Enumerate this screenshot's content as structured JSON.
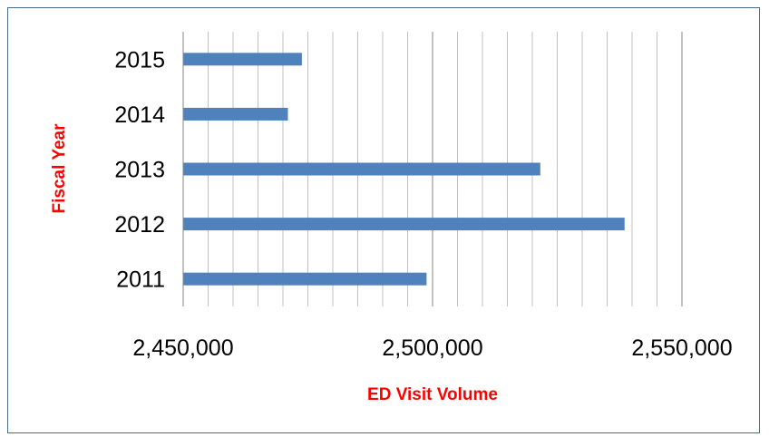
{
  "chart_data": {
    "type": "bar",
    "orientation": "horizontal",
    "categories": [
      "2011",
      "2012",
      "2013",
      "2014",
      "2015"
    ],
    "values": [
      2498800,
      2538500,
      2521600,
      2471000,
      2473800
    ],
    "xlabel": "ED Visit Volume",
    "ylabel": "Fiscal Year",
    "xlim": [
      2450000,
      2550000
    ],
    "x_ticks": [
      "2,450,000",
      "2,500,000",
      "2,550,000"
    ],
    "grid": true,
    "legend": "none",
    "bar_color": "#4f81bd",
    "axis_title_color": "#ff0000"
  }
}
